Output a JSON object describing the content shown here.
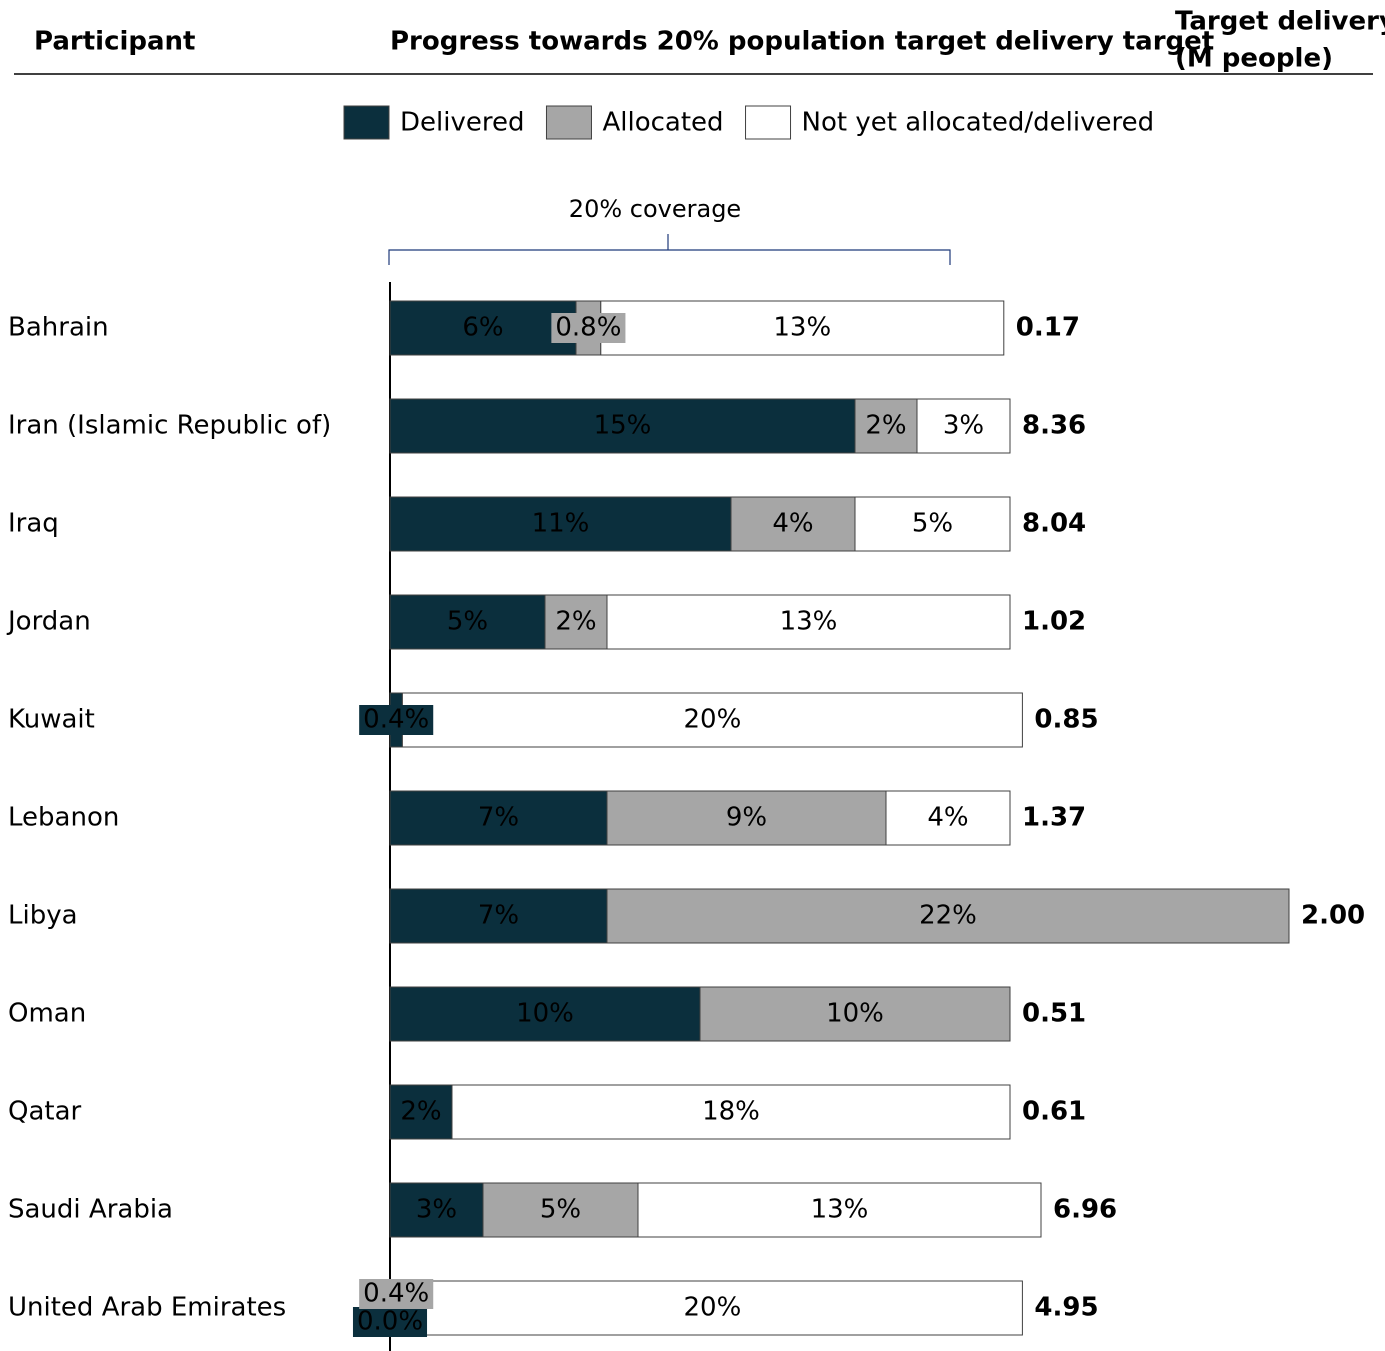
{
  "chart_data": {
    "type": "stacked-barh",
    "headers": {
      "participant": "Participant",
      "progress": "Progress towards 20% population target delivery target",
      "target": [
        "Target delivery",
        "(M people)"
      ]
    },
    "annotation": "20% coverage",
    "categories": [
      "Bahrain",
      "Iran (Islamic Republic of)",
      "Iraq",
      "Jordan",
      "Kuwait",
      "Lebanon",
      "Libya",
      "Oman",
      "Qatar",
      "Saudi Arabia",
      "United Arab Emirates"
    ],
    "series": [
      {
        "name": "Delivered",
        "color": "#0b2f3d",
        "text_color": "#ffffff",
        "values": [
          6,
          15,
          11,
          5,
          0.4,
          7,
          7,
          10,
          2,
          3,
          0.0
        ],
        "value_labels": [
          "6%",
          "15%",
          "11%",
          "5%",
          "0.4%",
          "7%",
          "7%",
          "10%",
          "2%",
          "3%",
          "0.0%"
        ]
      },
      {
        "name": "Allocated",
        "color": "#a6a6a6",
        "text_color": "#000000",
        "values": [
          0.8,
          2,
          4,
          2,
          null,
          9,
          22,
          10,
          null,
          5,
          0.4
        ],
        "value_labels": [
          "0.8%",
          "2%",
          "4%",
          "2%",
          null,
          "9%",
          "22%",
          "10%",
          null,
          "5%",
          "0.4%"
        ]
      },
      {
        "name": "Not yet allocated/delivered",
        "color": "#ffffff",
        "text_color": "#000000",
        "values": [
          13,
          3,
          5,
          13,
          20,
          4,
          null,
          null,
          18,
          13,
          20
        ],
        "value_labels": [
          "13%",
          "3%",
          "5%",
          "13%",
          "20%",
          "4%",
          null,
          null,
          "18%",
          "13%",
          "20%"
        ]
      }
    ],
    "target_delivery": [
      "0.17",
      "8.36",
      "8.04",
      "1.02",
      "0.85",
      "1.37",
      "2.00",
      "0.51",
      "0.61",
      "6.96",
      "4.95"
    ],
    "xlim": [
      0,
      30
    ]
  }
}
